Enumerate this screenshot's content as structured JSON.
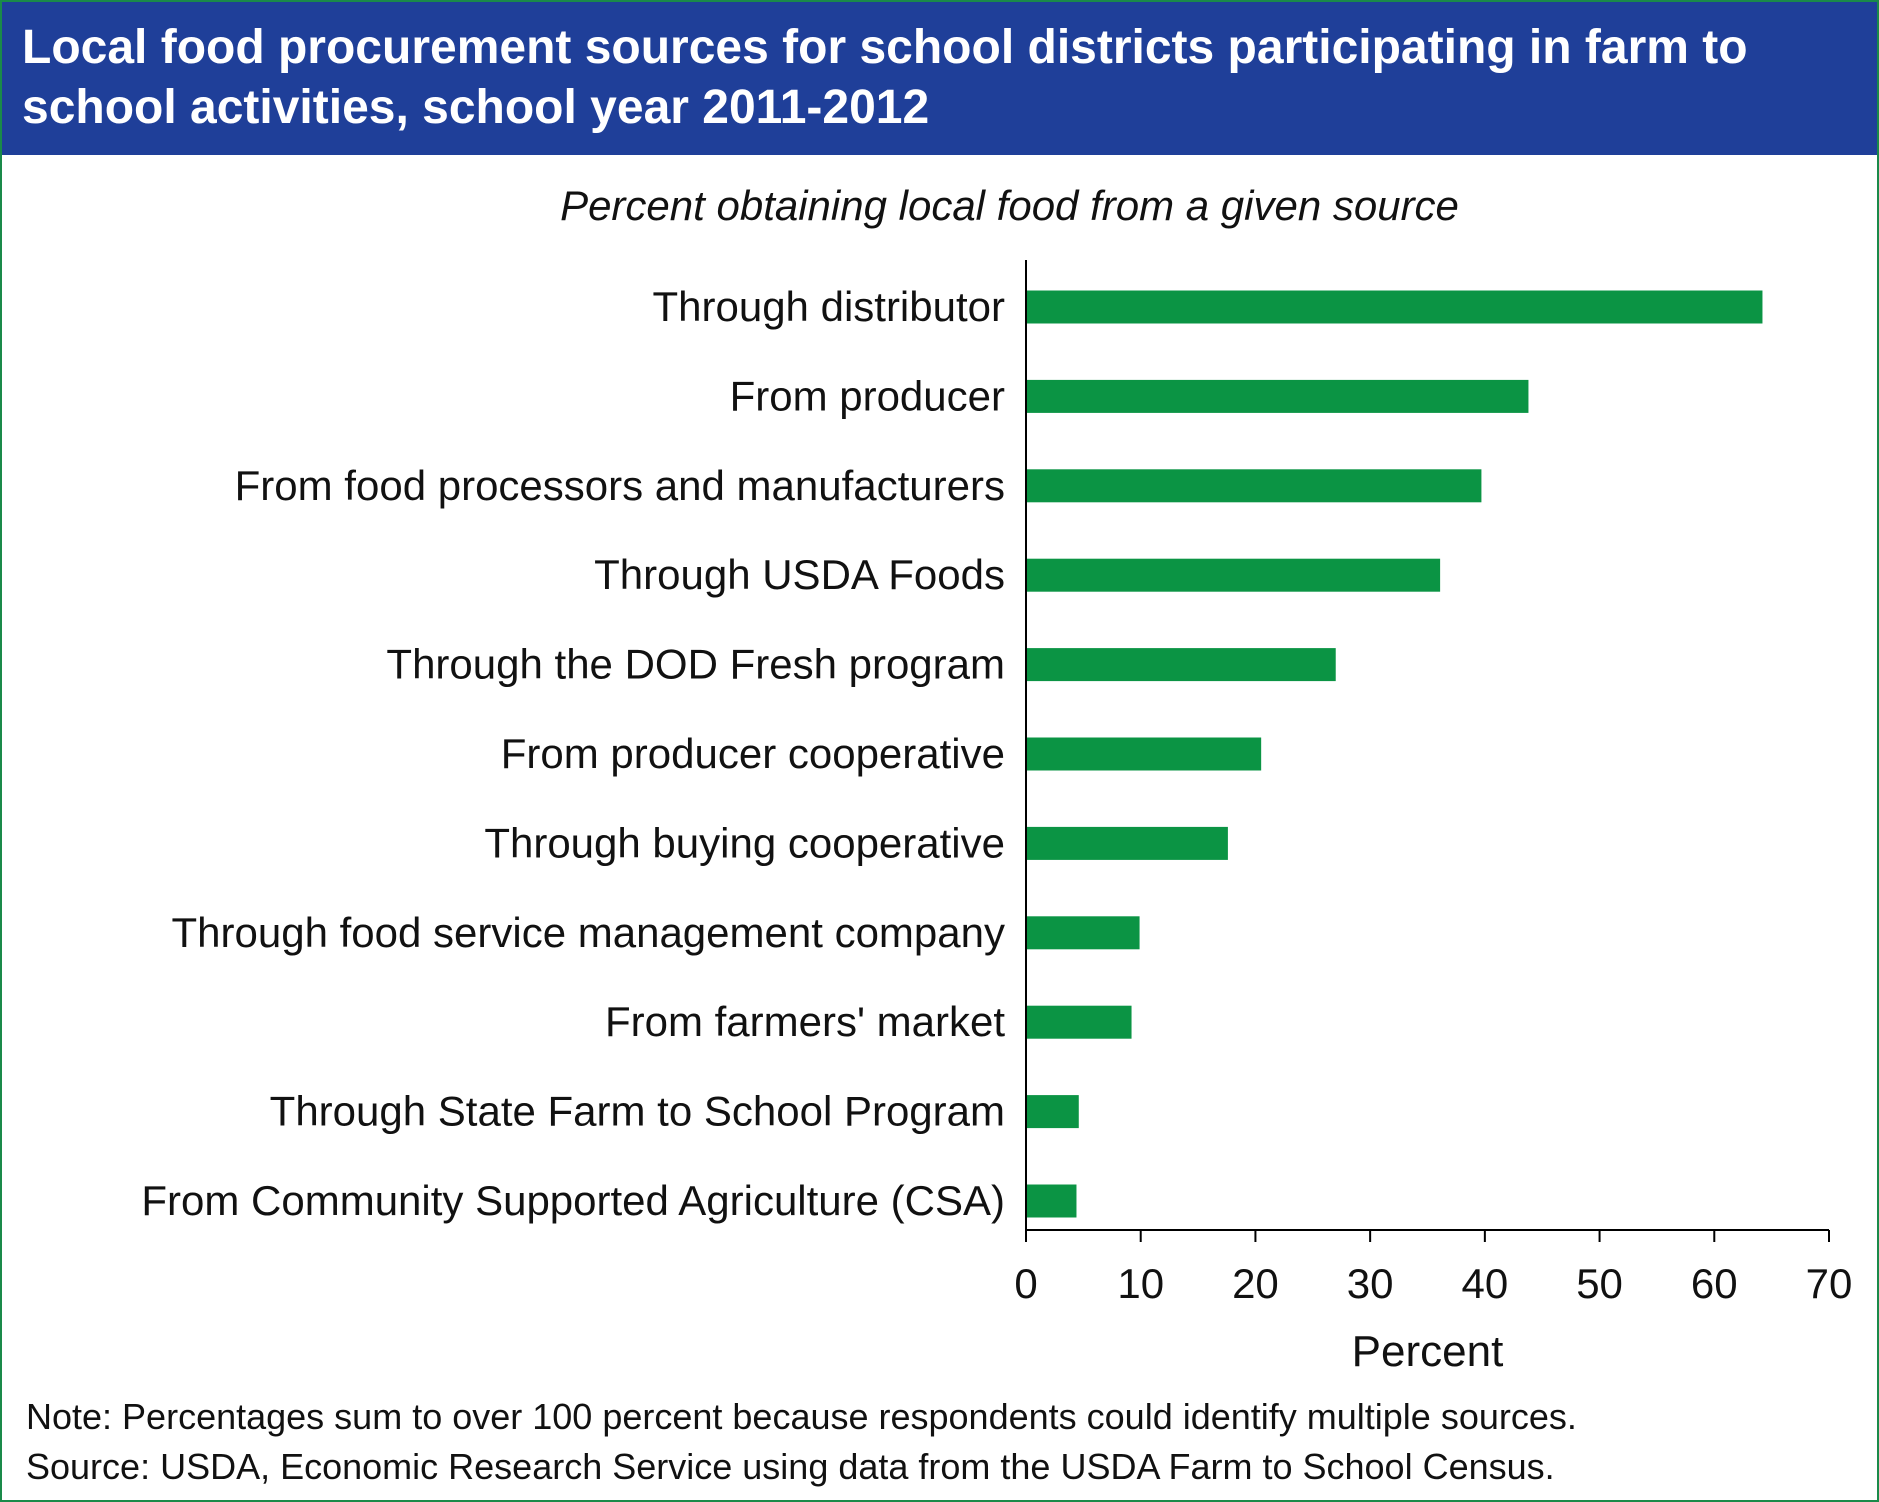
{
  "header": {
    "title": "Local food procurement sources for school districts participating in farm to school activities, school year 2011-2012"
  },
  "colors": {
    "header_bg": "#1f3f99",
    "bar": "#0b9444",
    "frame": "#1a8a4a"
  },
  "chart_data": {
    "type": "bar",
    "orientation": "horizontal",
    "title": "Local food procurement sources for school districts participating in farm to school activities, school year 2011-2012",
    "subtitle": "Percent obtaining local food from a given source",
    "xlabel": "Percent",
    "ylabel": "",
    "xlim": [
      0,
      70
    ],
    "xticks": [
      0,
      10,
      20,
      30,
      40,
      50,
      60,
      70
    ],
    "grid": false,
    "categories": [
      "Through distributor",
      "From producer",
      "From food processors and manufacturers",
      "Through USDA Foods",
      "Through the DOD Fresh program",
      "From producer cooperative",
      "Through buying cooperative",
      "Through food service management company",
      "From farmers' market",
      "Through State Farm to School Program",
      "From Community Supported Agriculture (CSA)"
    ],
    "values": [
      64.2,
      43.8,
      39.7,
      36.1,
      27.0,
      20.5,
      17.6,
      9.9,
      9.2,
      4.6,
      4.4
    ]
  },
  "footer": {
    "note": "Note: Percentages sum to over 100 percent because respondents could identify multiple sources.",
    "source": "Source: USDA, Economic Research Service using data from the USDA Farm to School Census."
  }
}
